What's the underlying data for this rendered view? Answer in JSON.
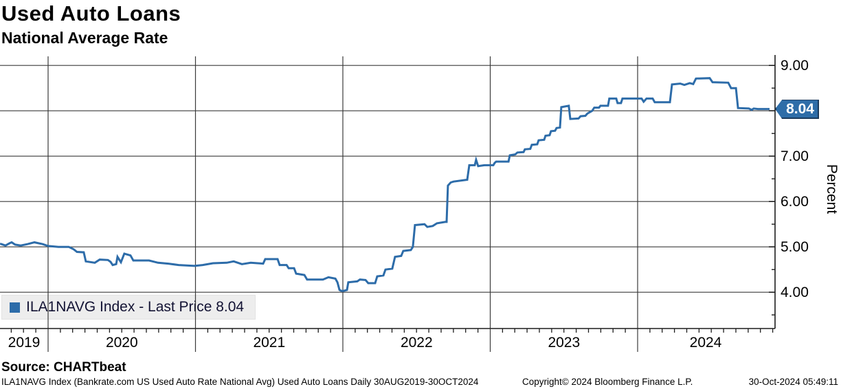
{
  "header": {
    "title": "Used Auto Loans",
    "subtitle": "National Average Rate"
  },
  "legend": {
    "label": "ILA1NAVG Index - Last Price 8.04"
  },
  "price_tag": {
    "value": "8.04"
  },
  "axes": {
    "y_label": "Percent",
    "y_tick_labels": [
      "4.00",
      "5.00",
      "6.00",
      "7.00",
      "8.00",
      "9.00"
    ],
    "x_labels": [
      "2019",
      "2020",
      "2021",
      "2022",
      "2023",
      "2024"
    ]
  },
  "footer": {
    "source": "Source: CHARTbeat",
    "description": "ILA1NAVG Index (Bankrate.com US Used Auto Rate National Avg) Used Auto Loans  Daily 30AUG2019-30OCT2024",
    "copyright": "Copyright© 2024 Bloomberg Finance L.P.",
    "datetime": "30-Oct-2024 05:49:11"
  },
  "colors": {
    "line": "#2d6ca9",
    "grid": "#3a3a3a",
    "tag_fill": "#2e6da8",
    "tag_border": "#1b3a5c",
    "legend_bg": "#ededed",
    "legend_marker": "#2d6ca9"
  },
  "chart_data": {
    "type": "line",
    "title": "Used Auto Loans",
    "subtitle": "National Average Rate",
    "ylabel": "Percent",
    "xlabel": "",
    "grid": true,
    "legend_position": "bottom-left",
    "last_price": 8.04,
    "x_domain_years": [
      2019.674,
      2024.923
    ],
    "x_year_gridlines": [
      2020,
      2021,
      2022,
      2023,
      2024
    ],
    "x_minor_tick_months": 1,
    "y_ticks": [
      4,
      5,
      6,
      7,
      8,
      9
    ],
    "y_minor_tick_step": 0.5,
    "y_view_range": [
      3.2,
      9.27
    ],
    "series": [
      {
        "name": "ILA1NAVG Index",
        "units": "Percent",
        "points": [
          [
            2019.674,
            5.07
          ],
          [
            2019.711,
            5.03
          ],
          [
            2019.739,
            5.08
          ],
          [
            2019.753,
            5.1
          ],
          [
            2019.776,
            5.05
          ],
          [
            2019.814,
            5.03
          ],
          [
            2019.86,
            5.06
          ],
          [
            2019.907,
            5.1
          ],
          [
            2019.963,
            5.06
          ],
          [
            2020.0,
            5.02
          ],
          [
            2020.07,
            5.0
          ],
          [
            2020.14,
            5.0
          ],
          [
            2020.172,
            4.95
          ],
          [
            2020.196,
            4.89
          ],
          [
            2020.242,
            4.88
          ],
          [
            2020.256,
            4.68
          ],
          [
            2020.317,
            4.65
          ],
          [
            2020.35,
            4.72
          ],
          [
            2020.406,
            4.71
          ],
          [
            2020.424,
            4.67
          ],
          [
            2020.438,
            4.6
          ],
          [
            2020.462,
            4.62
          ],
          [
            2020.471,
            4.78
          ],
          [
            2020.494,
            4.66
          ],
          [
            2020.517,
            4.85
          ],
          [
            2020.559,
            4.81
          ],
          [
            2020.578,
            4.7
          ],
          [
            2020.685,
            4.7
          ],
          [
            2020.746,
            4.65
          ],
          [
            2020.816,
            4.63
          ],
          [
            2020.886,
            4.6
          ],
          [
            2020.993,
            4.58
          ],
          [
            2021.049,
            4.6
          ],
          [
            2021.119,
            4.64
          ],
          [
            2021.212,
            4.65
          ],
          [
            2021.259,
            4.68
          ],
          [
            2021.315,
            4.62
          ],
          [
            2021.375,
            4.65
          ],
          [
            2021.459,
            4.63
          ],
          [
            2021.473,
            4.73
          ],
          [
            2021.557,
            4.73
          ],
          [
            2021.571,
            4.6
          ],
          [
            2021.618,
            4.6
          ],
          [
            2021.632,
            4.53
          ],
          [
            2021.669,
            4.53
          ],
          [
            2021.683,
            4.41
          ],
          [
            2021.739,
            4.38
          ],
          [
            2021.757,
            4.28
          ],
          [
            2021.865,
            4.28
          ],
          [
            2021.902,
            4.33
          ],
          [
            2021.949,
            4.3
          ],
          [
            2021.963,
            4.22
          ],
          [
            2021.977,
            4.05
          ],
          [
            2021.99,
            4.03
          ],
          [
            2022.004,
            4.03
          ],
          [
            2022.028,
            4.05
          ],
          [
            2022.037,
            4.22
          ],
          [
            2022.098,
            4.24
          ],
          [
            2022.116,
            4.28
          ],
          [
            2022.154,
            4.27
          ],
          [
            2022.172,
            4.2
          ],
          [
            2022.219,
            4.2
          ],
          [
            2022.233,
            4.35
          ],
          [
            2022.275,
            4.37
          ],
          [
            2022.289,
            4.5
          ],
          [
            2022.335,
            4.52
          ],
          [
            2022.354,
            4.78
          ],
          [
            2022.396,
            4.8
          ],
          [
            2022.41,
            4.91
          ],
          [
            2022.461,
            4.93
          ],
          [
            2022.475,
            5.0
          ],
          [
            2022.489,
            5.48
          ],
          [
            2022.554,
            5.5
          ],
          [
            2022.573,
            5.44
          ],
          [
            2022.61,
            5.46
          ],
          [
            2022.638,
            5.52
          ],
          [
            2022.694,
            5.55
          ],
          [
            2022.704,
            5.55
          ],
          [
            2022.713,
            6.35
          ],
          [
            2022.732,
            6.42
          ],
          [
            2022.751,
            6.44
          ],
          [
            2022.844,
            6.48
          ],
          [
            2022.858,
            6.8
          ],
          [
            2022.895,
            6.8
          ],
          [
            2022.904,
            6.92
          ],
          [
            2022.918,
            6.78
          ],
          [
            2022.96,
            6.8
          ],
          [
            2023.021,
            6.8
          ],
          [
            2023.03,
            6.85
          ],
          [
            2023.04,
            6.88
          ],
          [
            2023.124,
            6.88
          ],
          [
            2023.133,
            7.02
          ],
          [
            2023.17,
            7.04
          ],
          [
            2023.184,
            7.08
          ],
          [
            2023.226,
            7.09
          ],
          [
            2023.235,
            7.15
          ],
          [
            2023.272,
            7.16
          ],
          [
            2023.282,
            7.25
          ],
          [
            2023.319,
            7.26
          ],
          [
            2023.328,
            7.35
          ],
          [
            2023.366,
            7.36
          ],
          [
            2023.375,
            7.45
          ],
          [
            2023.403,
            7.46
          ],
          [
            2023.412,
            7.55
          ],
          [
            2023.44,
            7.56
          ],
          [
            2023.45,
            7.62
          ],
          [
            2023.473,
            7.63
          ],
          [
            2023.482,
            8.08
          ],
          [
            2023.533,
            8.11
          ],
          [
            2023.543,
            7.82
          ],
          [
            2023.599,
            7.83
          ],
          [
            2023.613,
            7.88
          ],
          [
            2023.645,
            7.89
          ],
          [
            2023.659,
            7.94
          ],
          [
            2023.692,
            8.0
          ],
          [
            2023.706,
            8.07
          ],
          [
            2023.738,
            8.07
          ],
          [
            2023.748,
            8.11
          ],
          [
            2023.799,
            8.11
          ],
          [
            2023.808,
            8.27
          ],
          [
            2023.855,
            8.27
          ],
          [
            2023.864,
            8.17
          ],
          [
            2023.887,
            8.17
          ],
          [
            2023.897,
            8.27
          ],
          [
            2024.027,
            8.27
          ],
          [
            2024.041,
            8.2
          ],
          [
            2024.06,
            8.27
          ],
          [
            2024.102,
            8.27
          ],
          [
            2024.116,
            8.19
          ],
          [
            2024.219,
            8.19
          ],
          [
            2024.233,
            8.58
          ],
          [
            2024.289,
            8.6
          ],
          [
            2024.317,
            8.57
          ],
          [
            2024.354,
            8.61
          ],
          [
            2024.377,
            8.59
          ],
          [
            2024.396,
            8.71
          ],
          [
            2024.489,
            8.72
          ],
          [
            2024.508,
            8.63
          ],
          [
            2024.615,
            8.62
          ],
          [
            2024.634,
            8.5
          ],
          [
            2024.667,
            8.5
          ],
          [
            2024.681,
            8.06
          ],
          [
            2024.755,
            8.05
          ],
          [
            2024.774,
            8.02
          ],
          [
            2024.788,
            8.05
          ],
          [
            2024.816,
            8.04
          ],
          [
            2024.895,
            8.04
          ]
        ]
      }
    ]
  }
}
